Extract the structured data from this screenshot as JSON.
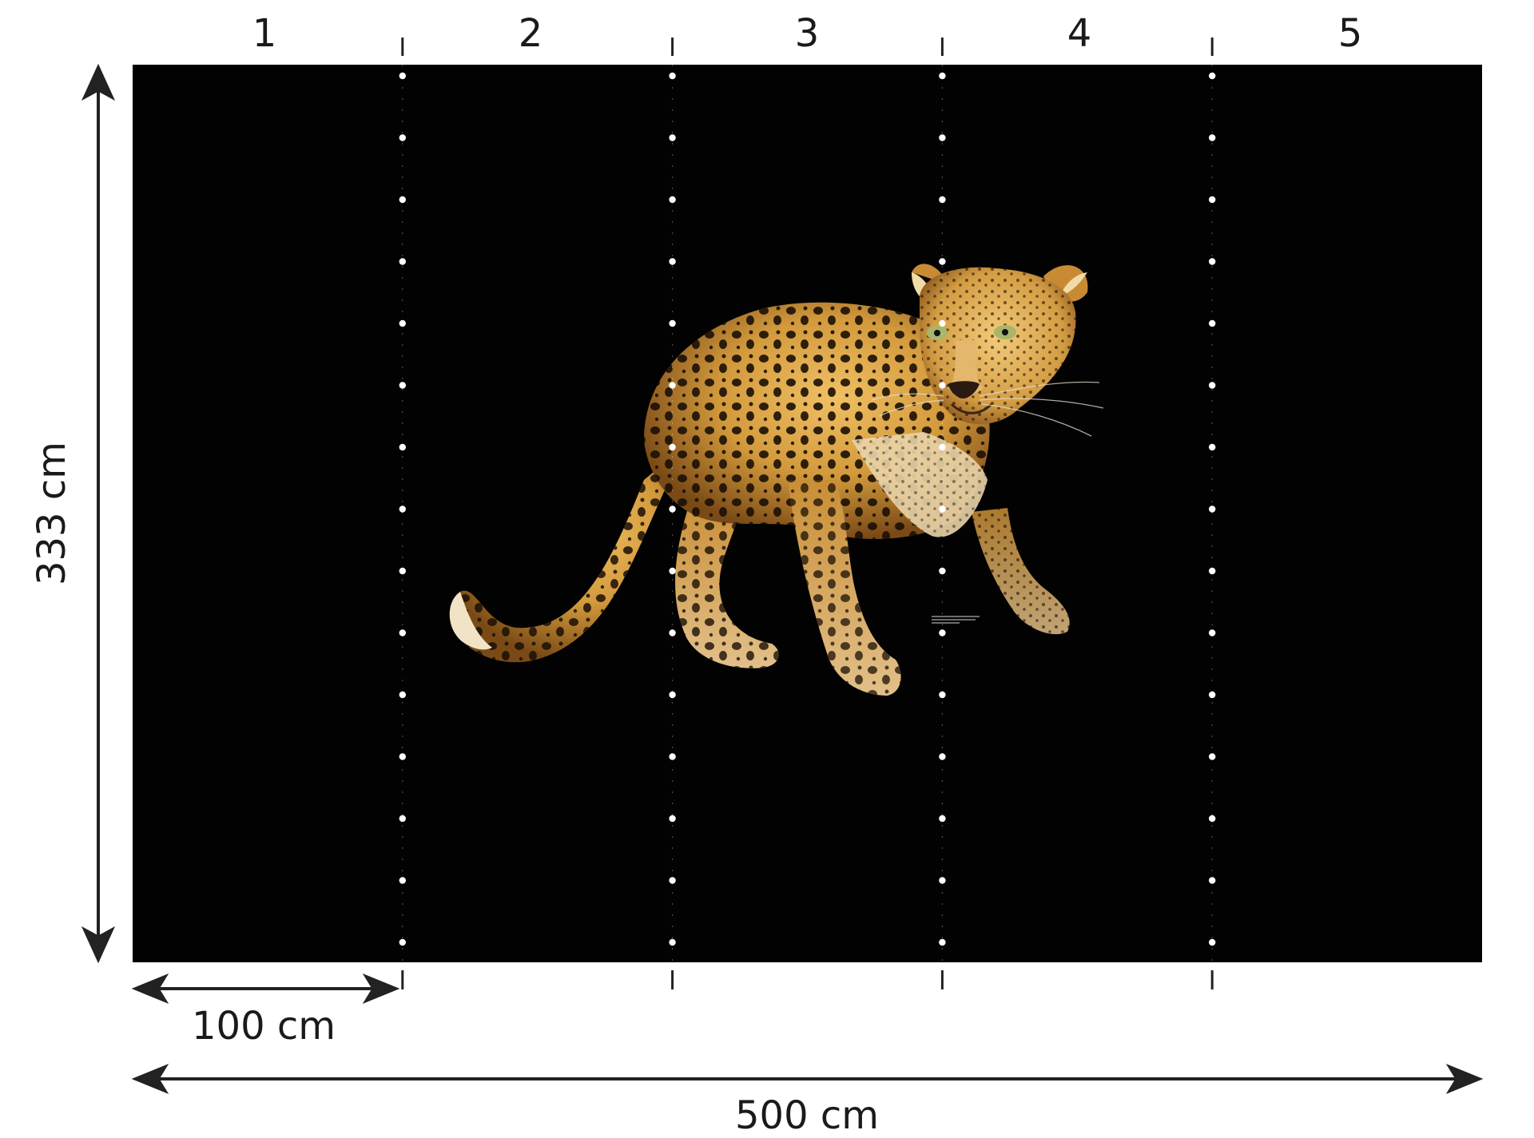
{
  "panels": [
    "1",
    "2",
    "3",
    "4",
    "5"
  ],
  "dimensions": {
    "height": "333 cm",
    "panel_width": "100 cm",
    "total_width": "500 cm"
  },
  "mural": {
    "subject": "leopard",
    "background_color": "#020202",
    "fur_color": "#d39a3c",
    "spot_color": "#1a0f05"
  }
}
